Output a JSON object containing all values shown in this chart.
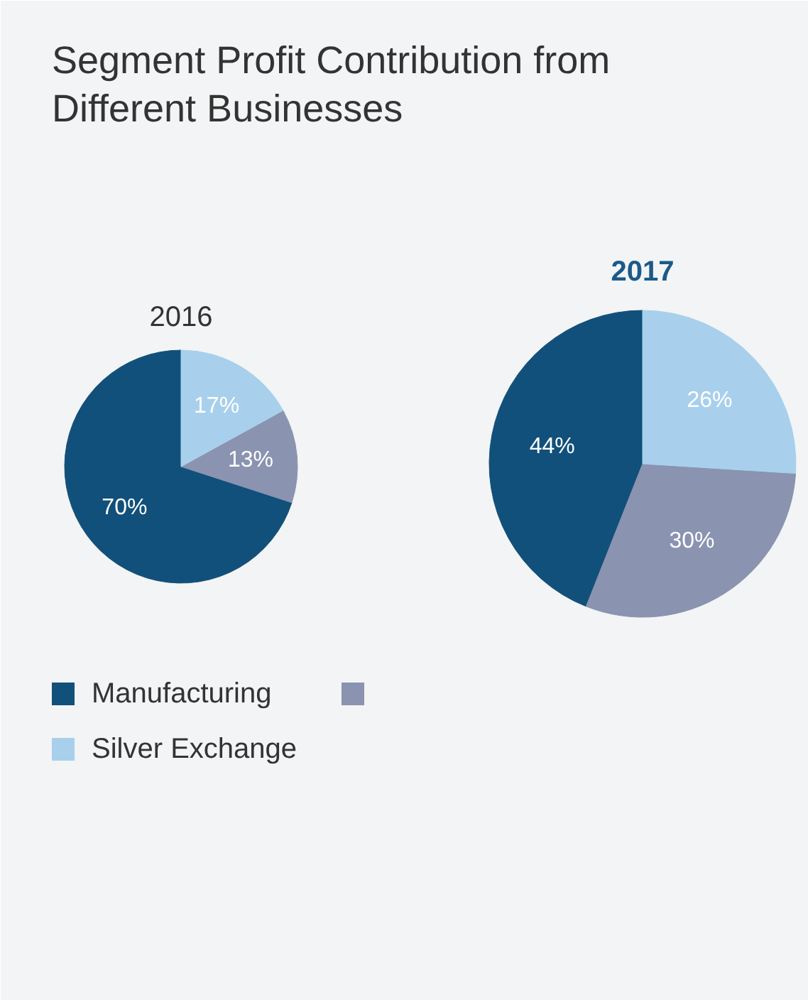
{
  "chart_data": {
    "type": "pie",
    "title": "Segment Profit Contribution from Different Businesses",
    "categories": [
      "Manufacturing",
      null,
      "Silver Exchange"
    ],
    "colors": [
      "#11507a",
      "#8a93b0",
      "#a8d0ec"
    ],
    "legend": "bottom",
    "series": [
      {
        "name": "2016",
        "values": [
          70,
          13,
          17
        ],
        "value_labels": [
          "70%",
          "13%",
          "17%"
        ]
      },
      {
        "name": "2017",
        "values": [
          44,
          30,
          26
        ],
        "value_labels": [
          "44%",
          "30%",
          "26%"
        ]
      }
    ]
  }
}
